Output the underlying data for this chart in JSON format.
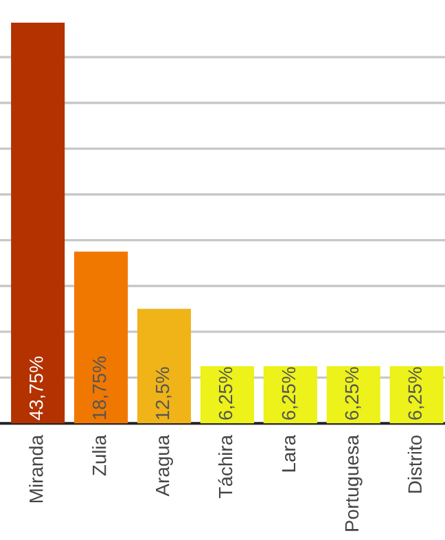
{
  "chart_data": {
    "type": "bar",
    "categories": [
      "Miranda",
      "Zulia",
      "Aragua",
      "Táchira",
      "Lara",
      "Portuguesa",
      "Distrito"
    ],
    "values": [
      43.75,
      18.75,
      12.5,
      6.25,
      6.25,
      6.25,
      6.25
    ],
    "value_labels": [
      "43,75%",
      "18,75%",
      "12,5%",
      "6,25%",
      "6,25%",
      "6,25%",
      "6,25%"
    ],
    "colors": [
      "#b33200",
      "#f07800",
      "#f0b418",
      "#ecf21a",
      "#ecf21a",
      "#ecf21a",
      "#ecf21a"
    ],
    "yticks": [
      {
        "value": 5,
        "label": null
      },
      {
        "value": 10,
        "label": null
      },
      {
        "value": 15,
        "label": null
      },
      {
        "value": 20,
        "label": null
      },
      {
        "value": 25,
        "label": null
      },
      {
        "value": 30,
        "label": null
      },
      {
        "value": 35,
        "label": null
      },
      {
        "value": 40,
        "label": null
      }
    ],
    "grid": "y"
  }
}
